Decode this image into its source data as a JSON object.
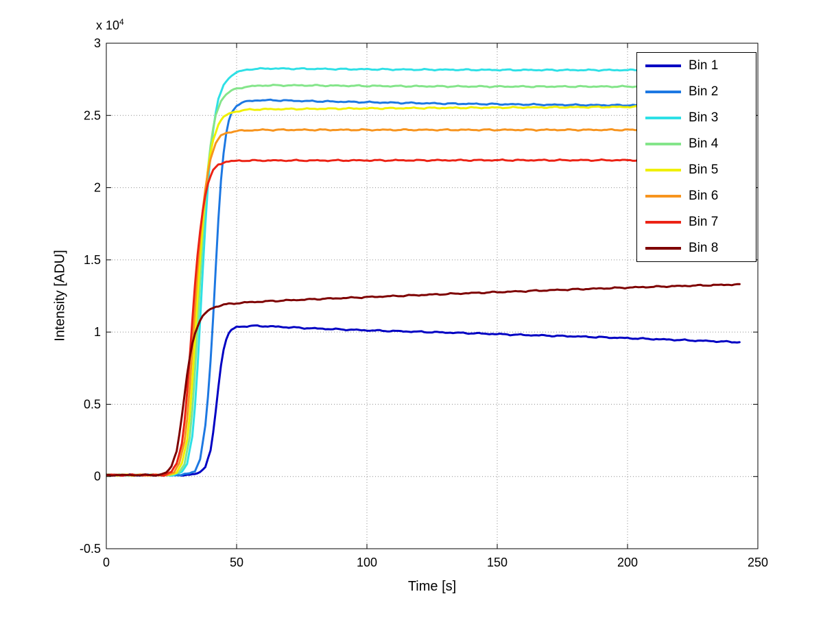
{
  "figure": {
    "background": "#ffffff",
    "xlabel": "Time [s]",
    "ylabel": "Intensity [ADU]",
    "y_multiplier_base": "x 10",
    "y_multiplier_exp": "4"
  },
  "chart_data": {
    "type": "line",
    "title": "",
    "xlabel": "Time [s]",
    "ylabel": "Intensity [ADU]",
    "xlim": [
      0,
      250
    ],
    "ylim": [
      -5000,
      30000
    ],
    "x_ticks": [
      0,
      50,
      100,
      150,
      200,
      250
    ],
    "x_tick_labels": [
      "0",
      "50",
      "100",
      "150",
      "200",
      "250"
    ],
    "y_ticks": [
      -5000,
      0,
      5000,
      10000,
      15000,
      20000,
      25000,
      30000
    ],
    "y_tick_labels": [
      "-0.5",
      "0",
      "0.5",
      "1",
      "1.5",
      "2",
      "2.5",
      "3"
    ],
    "y_axis_multiplier": "x 10^4",
    "grid": "dotted",
    "grid_color": "#8c8c8c",
    "axis_color": "#000000",
    "legend_position": "northeast",
    "line_width": 3,
    "series": [
      {
        "name": "Bin 1",
        "color": "#0000C3",
        "x": [
          0,
          30,
          34,
          36,
          38,
          40,
          41,
          42,
          43,
          44,
          45,
          46,
          47,
          48,
          50,
          53,
          57,
          62,
          70,
          80,
          100,
          120,
          140,
          160,
          180,
          200,
          220,
          243
        ],
        "y": [
          100,
          100,
          150,
          300,
          700,
          1800,
          3000,
          4500,
          6200,
          7700,
          8800,
          9500,
          9900,
          10150,
          10350,
          10400,
          10430,
          10400,
          10330,
          10250,
          10120,
          10020,
          9920,
          9800,
          9700,
          9580,
          9450,
          9300
        ]
      },
      {
        "name": "Bin 2",
        "color": "#1D78E2",
        "x": [
          0,
          28,
          32,
          34,
          36,
          38,
          39,
          40,
          41,
          42,
          43,
          44,
          45,
          46,
          47,
          48,
          50,
          53,
          58,
          65,
          75,
          90,
          110,
          130,
          150,
          170,
          190,
          208
        ],
        "y": [
          100,
          100,
          200,
          400,
          1200,
          3500,
          5500,
          8000,
          11000,
          14500,
          17800,
          20500,
          22400,
          23700,
          24600,
          25150,
          25700,
          25950,
          26050,
          26050,
          26000,
          25950,
          25880,
          25820,
          25780,
          25740,
          25710,
          25700
        ]
      },
      {
        "name": "Bin 3",
        "color": "#2EE0E6",
        "x": [
          0,
          26,
          29,
          31,
          33,
          34,
          35,
          36,
          37,
          38,
          39,
          40,
          41,
          42,
          43,
          45,
          47,
          50,
          55,
          62,
          75,
          95,
          120,
          150,
          180,
          208
        ],
        "y": [
          100,
          100,
          300,
          900,
          2800,
          4800,
          7500,
          10800,
          14200,
          17400,
          20200,
          22400,
          24000,
          25200,
          26100,
          27100,
          27600,
          28000,
          28200,
          28250,
          28230,
          28200,
          28170,
          28150,
          28140,
          28140
        ]
      },
      {
        "name": "Bin 4",
        "color": "#84E58A",
        "x": [
          0,
          25,
          28,
          30,
          32,
          33,
          34,
          35,
          36,
          37,
          38,
          39,
          40,
          41,
          42,
          44,
          46,
          49,
          54,
          61,
          75,
          95,
          120,
          150,
          180,
          208
        ],
        "y": [
          100,
          100,
          300,
          900,
          2700,
          4600,
          7200,
          10300,
          13600,
          16600,
          19200,
          21300,
          22900,
          24100,
          25000,
          26000,
          26500,
          26800,
          27000,
          27080,
          27080,
          27050,
          27020,
          27000,
          27000,
          27000
        ]
      },
      {
        "name": "Bin 5",
        "color": "#F0F000",
        "x": [
          0,
          24,
          27,
          29,
          31,
          32,
          33,
          34,
          35,
          36,
          37,
          38,
          39,
          40,
          41,
          43,
          45,
          48,
          53,
          60,
          75,
          95,
          120,
          150,
          180,
          208
        ],
        "y": [
          100,
          100,
          300,
          900,
          2500,
          4200,
          6600,
          9400,
          12400,
          15200,
          17600,
          19600,
          21200,
          22400,
          23300,
          24400,
          24900,
          25200,
          25380,
          25430,
          25450,
          25480,
          25510,
          25540,
          25570,
          25600
        ]
      },
      {
        "name": "Bin 6",
        "color": "#F7941E",
        "x": [
          0,
          23,
          26,
          28,
          30,
          31,
          32,
          33,
          34,
          35,
          36,
          37,
          38,
          39,
          40,
          42,
          44,
          47,
          52,
          60,
          75,
          95,
          120,
          160,
          200,
          208
        ],
        "y": [
          100,
          100,
          300,
          900,
          2400,
          4000,
          6200,
          8800,
          11600,
          14200,
          16500,
          18400,
          19900,
          21100,
          22000,
          23100,
          23600,
          23850,
          23950,
          24000,
          24000,
          24000,
          24000,
          24000,
          24000,
          24000
        ]
      },
      {
        "name": "Bin 7",
        "color": "#EC2315",
        "x": [
          0,
          22,
          25,
          27,
          29,
          30,
          31,
          32,
          33,
          34,
          35,
          36,
          37,
          38,
          39,
          41,
          43,
          46,
          51,
          60,
          80,
          110,
          150,
          185,
          208
        ],
        "y": [
          100,
          100,
          300,
          900,
          2300,
          3800,
          5800,
          8200,
          10800,
          13200,
          15300,
          17000,
          18400,
          19500,
          20300,
          21200,
          21600,
          21800,
          21870,
          21880,
          21880,
          21890,
          21900,
          21900,
          21900
        ]
      },
      {
        "name": "Bin 8",
        "color": "#7E0000",
        "x": [
          0,
          20,
          23,
          25,
          27,
          28,
          29,
          30,
          31,
          32,
          33,
          34,
          35,
          36,
          37,
          38,
          40,
          42,
          45,
          50,
          56,
          65,
          80,
          100,
          120,
          140,
          160,
          180,
          200,
          220,
          243
        ],
        "y": [
          100,
          100,
          250,
          700,
          1800,
          2900,
          4200,
          5600,
          7000,
          8200,
          9200,
          9900,
          10400,
          10800,
          11100,
          11300,
          11600,
          11750,
          11900,
          12000,
          12080,
          12160,
          12280,
          12420,
          12560,
          12700,
          12830,
          12960,
          13080,
          13190,
          13300
        ]
      }
    ]
  }
}
